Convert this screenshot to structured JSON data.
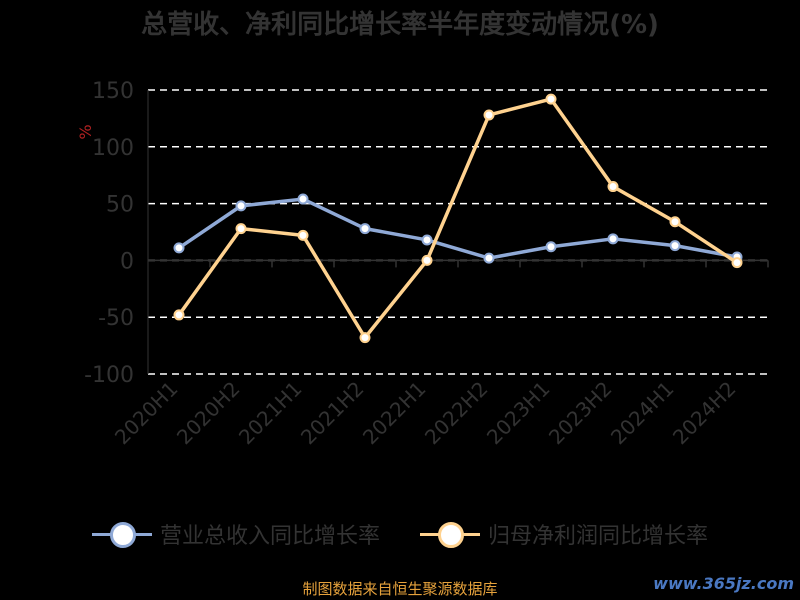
{
  "title": "总营收、净利同比增长率半年度变动情况(%)",
  "source_note": "制图数据来自恒生聚源数据库",
  "watermark": "www.365jz.com",
  "chart_data": {
    "type": "line",
    "unit_label": "%",
    "categories": [
      "2020H1",
      "2020H2",
      "2021H1",
      "2021H2",
      "2022H1",
      "2022H2",
      "2023H1",
      "2023H2",
      "2024H1",
      "2024H2"
    ],
    "ylim": [
      -100,
      150
    ],
    "yticks": [
      150,
      100,
      50,
      0,
      -50,
      -100
    ],
    "grid": true,
    "legend_position": "bottom",
    "series": [
      {
        "name": "营业总收入同比增长率",
        "color": "#8fa9d6",
        "values": [
          11,
          48,
          54,
          28,
          18,
          2,
          12,
          19,
          13,
          3
        ]
      },
      {
        "name": "归母净利润同比增长率",
        "color": "#ffd28f",
        "values": [
          -48,
          28,
          22,
          -68,
          0,
          128,
          142,
          65,
          34,
          -2
        ]
      }
    ]
  }
}
